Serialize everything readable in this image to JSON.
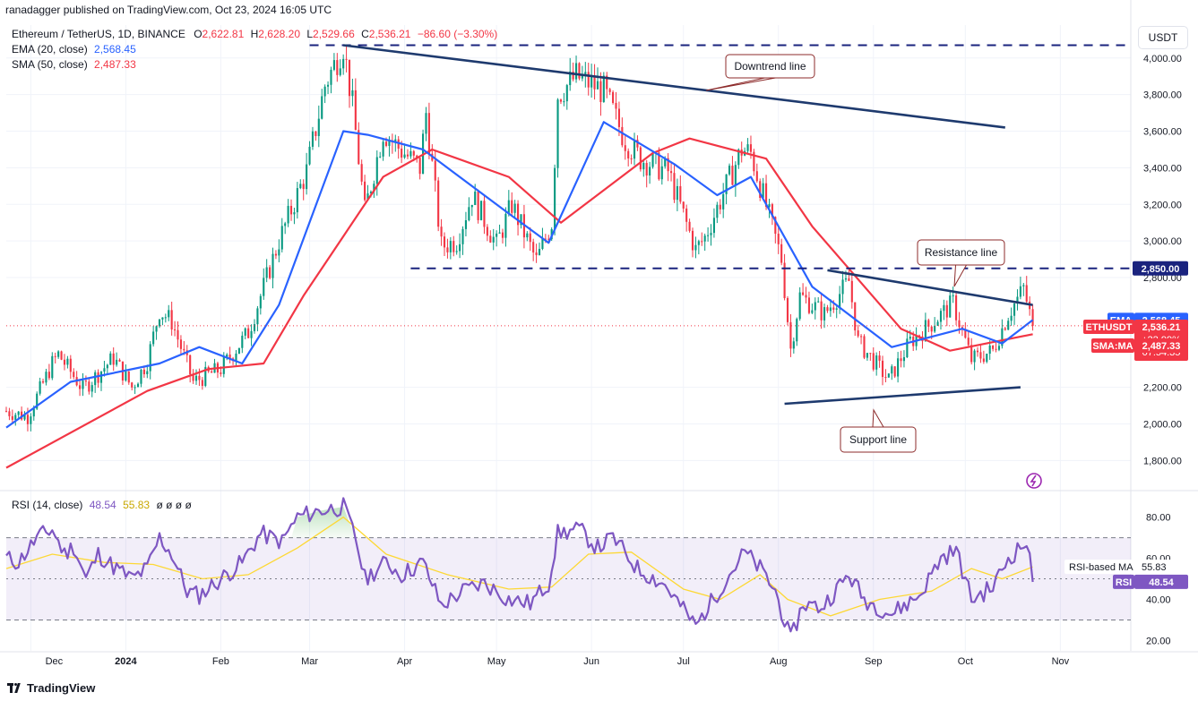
{
  "publisher_line": "ranadagger published on TradingView.com, Oct 23, 2024 16:05 UTC",
  "symbol_line": {
    "name": "Ethereum / TetherUS, 1D, BINANCE",
    "o_label": "O",
    "o": "2,622.81",
    "h_label": "H",
    "h": "2,628.20",
    "l_label": "L",
    "l": "2,529.66",
    "c_label": "C",
    "c": "2,536.21",
    "change": "−86.60 (−3.30%)"
  },
  "ema_line": {
    "label": "EMA (20, close)",
    "value": "2,568.45"
  },
  "sma_line": {
    "label": "SMA (50, close)",
    "value": "2,487.33"
  },
  "rsi_line": {
    "label": "RSI (14, close)",
    "value": "48.54",
    "ma_value": "55.83",
    "extra": "ø ø ø ø"
  },
  "currency_button": "USDT",
  "brand": "TradingView",
  "colors": {
    "ema": "#2962ff",
    "sma": "#f23645",
    "up": "#089981",
    "down": "#f23645",
    "rsi": "#7e57c2",
    "rsi_ma": "#fdd835",
    "annotation": "#1e3a6e"
  },
  "chart_data": {
    "type": "candlestick",
    "price_axis": {
      "ticks": [
        "4,000.00",
        "3,800.00",
        "3,600.00",
        "3,400.00",
        "3,200.00",
        "3,000.00",
        "2,800.00",
        "2,200.00",
        "2,000.00",
        "1,800.00"
      ],
      "tick_values": [
        4000,
        3800,
        3600,
        3400,
        3200,
        3000,
        2800,
        2200,
        2000,
        1800
      ],
      "range": [
        1650,
        4180
      ]
    },
    "time_axis": {
      "ticks": [
        "Dec",
        "2024",
        "Feb",
        "Mar",
        "Apr",
        "May",
        "Jun",
        "Jul",
        "Aug",
        "Sep",
        "Oct",
        "Nov"
      ],
      "tick_dates": [
        "2023-12-01",
        "2024-01-01",
        "2024-02-01",
        "2024-03-01",
        "2024-04-01",
        "2024-05-01",
        "2024-06-01",
        "2024-07-01",
        "2024-08-01",
        "2024-09-01",
        "2024-10-01",
        "2024-11-01"
      ],
      "range": [
        "2023-11-23",
        "2024-11-24"
      ]
    },
    "close_keypoints": [
      [
        "2023-11-23",
        2070
      ],
      [
        "2023-11-30",
        2040
      ],
      [
        "2023-12-08",
        2330
      ],
      [
        "2023-12-10",
        2380
      ],
      [
        "2023-12-18",
        2190
      ],
      [
        "2023-12-28",
        2360
      ],
      [
        "2024-01-03",
        2200
      ],
      [
        "2024-01-08",
        2340
      ],
      [
        "2024-01-12",
        2620
      ],
      [
        "2024-01-16",
        2560
      ],
      [
        "2024-01-23",
        2230
      ],
      [
        "2024-02-01",
        2300
      ],
      [
        "2024-02-10",
        2500
      ],
      [
        "2024-02-20",
        3000
      ],
      [
        "2024-02-29",
        3380
      ],
      [
        "2024-03-06",
        3850
      ],
      [
        "2024-03-12",
        4070
      ],
      [
        "2024-03-15",
        3740
      ],
      [
        "2024-03-19",
        3160
      ],
      [
        "2024-03-25",
        3600
      ],
      [
        "2024-03-30",
        3510
      ],
      [
        "2024-04-06",
        3400
      ],
      [
        "2024-04-08",
        3700
      ],
      [
        "2024-04-13",
        2970
      ],
      [
        "2024-04-18",
        3000
      ],
      [
        "2024-04-23",
        3250
      ],
      [
        "2024-05-01",
        2980
      ],
      [
        "2024-05-06",
        3200
      ],
      [
        "2024-05-14",
        2890
      ],
      [
        "2024-05-19",
        3100
      ],
      [
        "2024-05-21",
        3800
      ],
      [
        "2024-05-27",
        3900
      ],
      [
        "2024-06-05",
        3820
      ],
      [
        "2024-06-12",
        3550
      ],
      [
        "2024-06-17",
        3450
      ],
      [
        "2024-06-26",
        3380
      ],
      [
        "2024-07-05",
        2950
      ],
      [
        "2024-07-08",
        3020
      ],
      [
        "2024-07-20",
        3500
      ],
      [
        "2024-07-23",
        3480
      ],
      [
        "2024-08-02",
        2900
      ],
      [
        "2024-08-05",
        2410
      ],
      [
        "2024-08-08",
        2700
      ],
      [
        "2024-08-16",
        2600
      ],
      [
        "2024-08-24",
        2780
      ],
      [
        "2024-08-27",
        2450
      ],
      [
        "2024-09-06",
        2240
      ],
      [
        "2024-09-13",
        2450
      ],
      [
        "2024-09-20",
        2550
      ],
      [
        "2024-09-27",
        2660
      ],
      [
        "2024-10-03",
        2350
      ],
      [
        "2024-10-10",
        2400
      ],
      [
        "2024-10-15",
        2600
      ],
      [
        "2024-10-20",
        2740
      ],
      [
        "2024-10-23",
        2536
      ]
    ],
    "ema20_keypoints": [
      [
        "2023-11-23",
        1980
      ],
      [
        "2023-12-14",
        2230
      ],
      [
        "2024-01-12",
        2330
      ],
      [
        "2024-01-25",
        2420
      ],
      [
        "2024-02-08",
        2330
      ],
      [
        "2024-02-20",
        2650
      ],
      [
        "2024-03-12",
        3600
      ],
      [
        "2024-03-20",
        3580
      ],
      [
        "2024-04-07",
        3500
      ],
      [
        "2024-05-05",
        3150
      ],
      [
        "2024-05-18",
        2990
      ],
      [
        "2024-06-05",
        3650
      ],
      [
        "2024-06-28",
        3420
      ],
      [
        "2024-07-12",
        3250
      ],
      [
        "2024-07-23",
        3350
      ],
      [
        "2024-08-12",
        2750
      ],
      [
        "2024-09-07",
        2420
      ],
      [
        "2024-09-30",
        2520
      ],
      [
        "2024-10-13",
        2440
      ],
      [
        "2024-10-23",
        2568
      ]
    ],
    "sma50_keypoints": [
      [
        "2023-11-23",
        1760
      ],
      [
        "2024-01-08",
        2180
      ],
      [
        "2024-01-28",
        2300
      ],
      [
        "2024-02-15",
        2330
      ],
      [
        "2024-02-28",
        2700
      ],
      [
        "2024-03-25",
        3350
      ],
      [
        "2024-04-10",
        3500
      ],
      [
        "2024-05-05",
        3350
      ],
      [
        "2024-05-22",
        3100
      ],
      [
        "2024-06-21",
        3480
      ],
      [
        "2024-07-03",
        3560
      ],
      [
        "2024-07-28",
        3450
      ],
      [
        "2024-08-12",
        3080
      ],
      [
        "2024-09-10",
        2520
      ],
      [
        "2024-09-26",
        2400
      ],
      [
        "2024-10-23",
        2490
      ]
    ],
    "current_close": 2536.21,
    "labels": {
      "ema": {
        "tag": "EMA",
        "value": "2,568.45"
      },
      "last": {
        "tag": "ETHUSDT",
        "value": "2,536.21",
        "change": "+22.99%",
        "countdown": "07:54:35"
      },
      "sma": {
        "tag": "SMA:MA",
        "value": "2,487.33"
      },
      "resistance_level": "2,850.00"
    },
    "annotations": [
      {
        "text": "Downtrend line",
        "from": [
          "2024-03-12",
          4070
        ],
        "to": [
          "2024-10-14",
          3620
        ]
      },
      {
        "text": "Resistance line",
        "from": [
          "2024-08-17",
          2840
        ],
        "to": [
          "2024-10-23",
          2650
        ]
      },
      {
        "text": "Support line",
        "from": [
          "2024-08-03",
          2110
        ],
        "to": [
          "2024-10-19",
          2200
        ]
      }
    ],
    "horizontal_levels": [
      {
        "value": 4070,
        "from": "2024-03-01",
        "to": "2024-11-23"
      },
      {
        "value": 2850,
        "from": "2024-04-03",
        "to": "2024-11-24"
      }
    ],
    "rsi": {
      "axis_ticks": [
        "80.00",
        "60.00",
        "40.00",
        "20.00"
      ],
      "tick_values": [
        80,
        60,
        40,
        20
      ],
      "range": [
        15,
        92
      ],
      "bands": [
        70,
        50,
        30
      ],
      "keypoints": [
        [
          "2023-11-23",
          60
        ],
        [
          "2023-11-27",
          58
        ],
        [
          "2023-12-03",
          70
        ],
        [
          "2023-12-08",
          74
        ],
        [
          "2023-12-12",
          62
        ],
        [
          "2023-12-15",
          66
        ],
        [
          "2023-12-19",
          50
        ],
        [
          "2023-12-23",
          62
        ],
        [
          "2023-12-28",
          56
        ],
        [
          "2024-01-03",
          50
        ],
        [
          "2024-01-08",
          55
        ],
        [
          "2024-01-12",
          70
        ],
        [
          "2024-01-16",
          62
        ],
        [
          "2024-01-21",
          44
        ],
        [
          "2024-01-25",
          42
        ],
        [
          "2024-02-01",
          50
        ],
        [
          "2024-02-08",
          58
        ],
        [
          "2024-02-14",
          72
        ],
        [
          "2024-02-21",
          68
        ],
        [
          "2024-02-26",
          80
        ],
        [
          "2024-03-04",
          83
        ],
        [
          "2024-03-12",
          85
        ],
        [
          "2024-03-16",
          70
        ],
        [
          "2024-03-19",
          50
        ],
        [
          "2024-03-26",
          58
        ],
        [
          "2024-03-31",
          52
        ],
        [
          "2024-04-07",
          58
        ],
        [
          "2024-04-13",
          37
        ],
        [
          "2024-04-20",
          44
        ],
        [
          "2024-04-27",
          48
        ],
        [
          "2024-05-05",
          40
        ],
        [
          "2024-05-12",
          38
        ],
        [
          "2024-05-18",
          48
        ],
        [
          "2024-05-21",
          72
        ],
        [
          "2024-05-28",
          74
        ],
        [
          "2024-06-03",
          65
        ],
        [
          "2024-06-08",
          70
        ],
        [
          "2024-06-16",
          55
        ],
        [
          "2024-06-25",
          47
        ],
        [
          "2024-07-05",
          27
        ],
        [
          "2024-07-15",
          50
        ],
        [
          "2024-07-21",
          63
        ],
        [
          "2024-07-26",
          55
        ],
        [
          "2024-07-31",
          44
        ],
        [
          "2024-08-05",
          20
        ],
        [
          "2024-08-09",
          38
        ],
        [
          "2024-08-15",
          36
        ],
        [
          "2024-08-24",
          52
        ],
        [
          "2024-08-29",
          40
        ],
        [
          "2024-09-07",
          33
        ],
        [
          "2024-09-16",
          42
        ],
        [
          "2024-09-23",
          60
        ],
        [
          "2024-09-28",
          64
        ],
        [
          "2024-10-03",
          40
        ],
        [
          "2024-10-10",
          46
        ],
        [
          "2024-10-15",
          60
        ],
        [
          "2024-10-21",
          68
        ],
        [
          "2024-10-23",
          48.5
        ]
      ],
      "ma_keypoints": [
        [
          "2023-11-23",
          55
        ],
        [
          "2023-12-08",
          62
        ],
        [
          "2023-12-25",
          58
        ],
        [
          "2024-01-10",
          57
        ],
        [
          "2024-01-26",
          50
        ],
        [
          "2024-02-10",
          52
        ],
        [
          "2024-02-26",
          65
        ],
        [
          "2024-03-12",
          80
        ],
        [
          "2024-03-26",
          62
        ],
        [
          "2024-04-15",
          52
        ],
        [
          "2024-05-05",
          45
        ],
        [
          "2024-05-19",
          46
        ],
        [
          "2024-05-31",
          62
        ],
        [
          "2024-06-14",
          63
        ],
        [
          "2024-07-01",
          45
        ],
        [
          "2024-07-13",
          40
        ],
        [
          "2024-07-26",
          52
        ],
        [
          "2024-08-04",
          40
        ],
        [
          "2024-08-18",
          32
        ],
        [
          "2024-09-03",
          40
        ],
        [
          "2024-09-20",
          44
        ],
        [
          "2024-10-03",
          55
        ],
        [
          "2024-10-13",
          50
        ],
        [
          "2024-10-23",
          55.8
        ]
      ],
      "labels": {
        "ma": {
          "tag": "RSI-based MA",
          "value": "55.83"
        },
        "rsi": {
          "tag": "RSI",
          "value": "48.54"
        }
      }
    }
  }
}
